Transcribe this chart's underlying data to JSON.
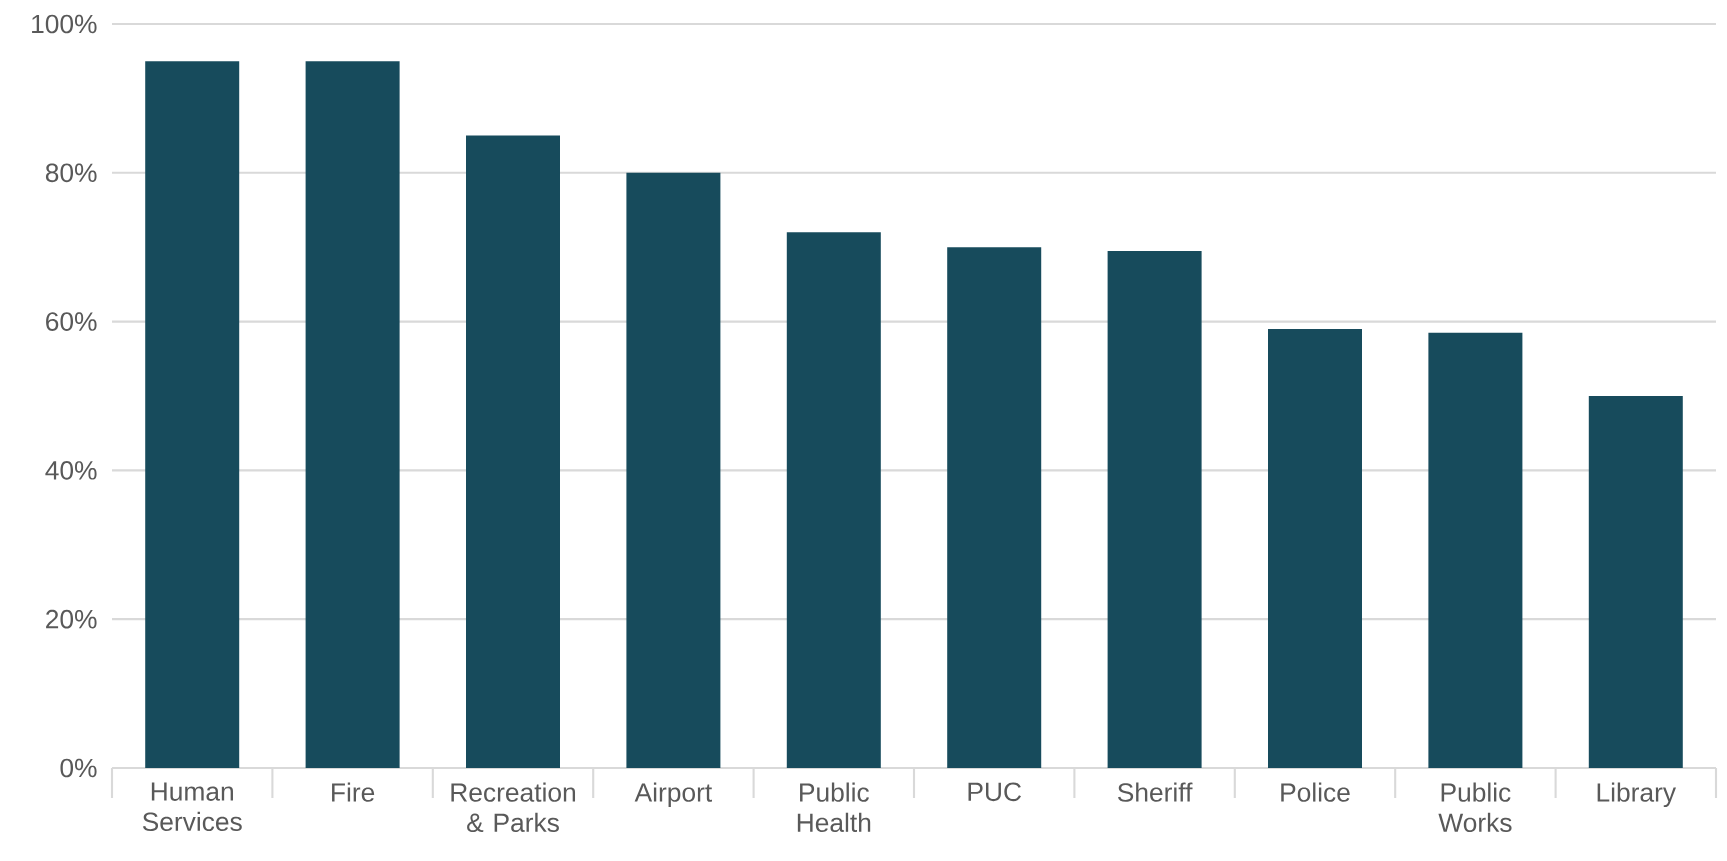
{
  "chart_data": {
    "type": "bar",
    "categories": [
      "Human Services",
      "Fire",
      "Recreation & Parks",
      "Airport",
      "Public Health",
      "PUC",
      "Sheriff",
      "Police",
      "Public Works",
      "Library"
    ],
    "values": [
      95,
      95,
      85,
      80,
      72,
      70,
      69.5,
      59,
      58.5,
      50
    ],
    "color": "#174b5c",
    "ylim": [
      0,
      100
    ],
    "yticks": [
      {
        "value": 0,
        "label": "0%"
      },
      {
        "value": 20,
        "label": "20%"
      },
      {
        "value": 40,
        "label": "40%"
      },
      {
        "value": 60,
        "label": "60%"
      },
      {
        "value": 80,
        "label": "80%"
      },
      {
        "value": 100,
        "label": "100%"
      }
    ],
    "grid": "y"
  }
}
